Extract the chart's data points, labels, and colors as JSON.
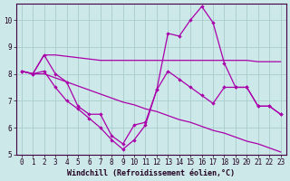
{
  "xlabel": "Windchill (Refroidissement éolien,°C)",
  "background_color": "#cce8e8",
  "line_color": "#aa00aa",
  "grid_color": "#aacccc",
  "xlim": [
    -0.5,
    23.5
  ],
  "ylim": [
    5,
    10.6
  ],
  "yticks": [
    5,
    6,
    7,
    8,
    9,
    10
  ],
  "tick_fontsize": 5.5,
  "xlabel_fontsize": 6.0,
  "line1_no_marker": {
    "x": [
      0,
      1,
      2,
      3,
      4,
      5,
      6,
      7,
      8,
      9,
      10,
      11,
      12,
      13,
      14,
      15,
      16,
      17,
      18,
      19,
      20,
      21,
      22,
      23
    ],
    "y": [
      8.1,
      8.0,
      8.7,
      8.7,
      8.65,
      8.6,
      8.55,
      8.5,
      8.5,
      8.5,
      8.5,
      8.5,
      8.5,
      8.5,
      8.5,
      8.5,
      8.5,
      8.5,
      8.5,
      8.5,
      8.5,
      8.45,
      8.45,
      8.45
    ]
  },
  "line2_no_marker": {
    "x": [
      0,
      1,
      2,
      3,
      4,
      5,
      6,
      7,
      8,
      9,
      10,
      11,
      12,
      13,
      14,
      15,
      16,
      17,
      18,
      19,
      20,
      21,
      22,
      23
    ],
    "y": [
      8.1,
      8.0,
      8.0,
      7.85,
      7.7,
      7.55,
      7.4,
      7.25,
      7.1,
      6.95,
      6.85,
      6.7,
      6.6,
      6.45,
      6.3,
      6.2,
      6.05,
      5.9,
      5.8,
      5.65,
      5.5,
      5.4,
      5.25,
      5.1
    ]
  },
  "line3_marker": {
    "x": [
      0,
      1,
      2,
      3,
      4,
      5,
      6,
      7,
      8,
      9,
      10,
      11,
      12,
      13,
      14,
      15,
      16,
      17,
      18,
      19,
      20,
      21,
      22,
      23
    ],
    "y": [
      8.1,
      8.0,
      8.7,
      8.0,
      7.7,
      6.8,
      6.5,
      6.5,
      5.7,
      5.4,
      6.1,
      6.2,
      7.4,
      9.5,
      9.4,
      10.0,
      10.5,
      9.9,
      8.4,
      7.5,
      7.5,
      6.8,
      6.8,
      6.5
    ]
  },
  "line4_marker": {
    "x": [
      0,
      1,
      2,
      3,
      4,
      5,
      6,
      7,
      8,
      9,
      10,
      11,
      12,
      13,
      14,
      15,
      16,
      17,
      18,
      19,
      20,
      21,
      22,
      23
    ],
    "y": [
      8.1,
      8.0,
      8.1,
      7.5,
      7.0,
      6.7,
      6.35,
      6.0,
      5.55,
      5.2,
      5.55,
      6.1,
      7.4,
      8.1,
      7.8,
      7.5,
      7.2,
      6.9,
      7.5,
      7.5,
      7.5,
      6.8,
      6.8,
      6.5
    ]
  },
  "xtick_labels": [
    "0",
    "1",
    "2",
    "3",
    "4",
    "5",
    "6",
    "7",
    "8",
    "9",
    "10",
    "11",
    "12",
    "13",
    "14",
    "15",
    "16",
    "17",
    "18",
    "19",
    "20",
    "21",
    "22",
    "23"
  ]
}
